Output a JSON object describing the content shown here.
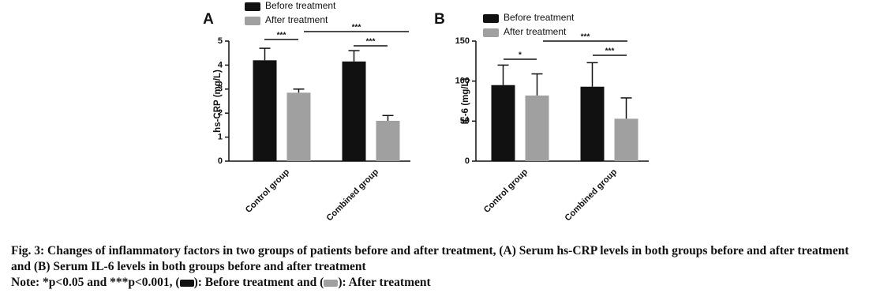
{
  "chart_data": [
    {
      "type": "bar",
      "panel": "A",
      "y_label": "hs-CRP (mg/L)",
      "categories": [
        "Control group",
        "Combined group"
      ],
      "series": [
        {
          "name": "Before treatment",
          "color": "#111111",
          "values": [
            4.2,
            4.15
          ],
          "errors": [
            0.5,
            0.45
          ]
        },
        {
          "name": "After treatment",
          "color": "#a0a0a0",
          "values": [
            2.85,
            1.68
          ],
          "errors": [
            0.15,
            0.22
          ]
        }
      ],
      "ylim": [
        0,
        5
      ],
      "yticks": [
        0,
        1,
        2,
        3,
        4,
        5
      ],
      "legend": "top",
      "annotations": [
        "***",
        "***",
        "***"
      ]
    },
    {
      "type": "bar",
      "panel": "B",
      "y_label": "IL-6 (mg/L)",
      "categories": [
        "Control group",
        "Combined group"
      ],
      "series": [
        {
          "name": "Before treatment",
          "color": "#111111",
          "values": [
            95,
            93
          ],
          "errors": [
            25,
            30
          ]
        },
        {
          "name": "After treatment",
          "color": "#a0a0a0",
          "values": [
            82,
            53
          ],
          "errors": [
            27,
            26
          ]
        }
      ],
      "ylim": [
        0,
        150
      ],
      "yticks": [
        0,
        50,
        100,
        150
      ],
      "legend": "top",
      "annotations": [
        "*",
        "***",
        "***"
      ]
    }
  ],
  "caption": {
    "title": "Fig. 3: Changes of inflammatory factors in two groups of patients before and after treatment, (A) Serum hs-CRP levels in both groups before and after treatment and (B) Serum IL-6 levels in both groups before and after treatment",
    "note_start": "Note: *p<0.05 and ***p<0.001, (",
    "note_middle": "): Before treatment and (",
    "note_end": "): After treatment"
  }
}
